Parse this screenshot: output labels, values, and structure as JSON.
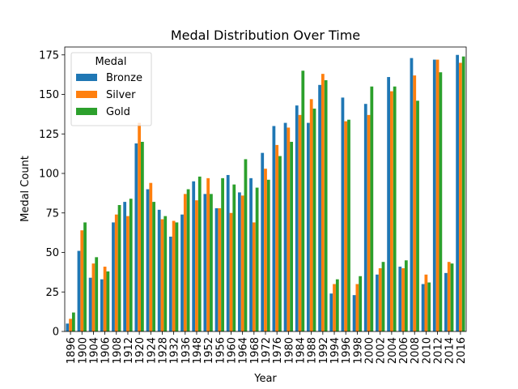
{
  "chart_data": {
    "type": "bar",
    "title": "Medal Distribution Over Time",
    "xlabel": "Year",
    "ylabel": "Medal Count",
    "ylim": [
      0,
      180
    ],
    "yticks": [
      0,
      25,
      50,
      75,
      100,
      125,
      150,
      175
    ],
    "grid": false,
    "legend": {
      "title": "Medal",
      "position": "top-left"
    },
    "categories": [
      "1896",
      "1900",
      "1904",
      "1906",
      "1908",
      "1912",
      "1920",
      "1924",
      "1928",
      "1932",
      "1936",
      "1948",
      "1952",
      "1956",
      "1960",
      "1964",
      "1968",
      "1972",
      "1976",
      "1980",
      "1984",
      "1988",
      "1992",
      "1994",
      "1996",
      "1998",
      "2000",
      "2002",
      "2004",
      "2006",
      "2008",
      "2010",
      "2012",
      "2014",
      "2016"
    ],
    "series": [
      {
        "name": "Bronze",
        "color": "#1f77b4",
        "values": [
          5,
          51,
          34,
          33,
          69,
          82,
          119,
          90,
          77,
          60,
          74,
          95,
          87,
          78,
          99,
          88,
          97,
          113,
          130,
          132,
          143,
          132,
          156,
          24,
          148,
          23,
          144,
          36,
          161,
          41,
          173,
          30,
          172,
          37,
          175
        ]
      },
      {
        "name": "Silver",
        "color": "#ff7f0e",
        "values": [
          8,
          64,
          43,
          41,
          74,
          73,
          132,
          94,
          71,
          70,
          87,
          83,
          97,
          78,
          75,
          86,
          69,
          103,
          118,
          129,
          137,
          147,
          163,
          30,
          133,
          30,
          137,
          40,
          152,
          40,
          162,
          36,
          172,
          44,
          170
        ]
      },
      {
        "name": "Gold",
        "color": "#2ca02c",
        "values": [
          12,
          69,
          47,
          38,
          80,
          84,
          120,
          82,
          73,
          69,
          90,
          98,
          87,
          97,
          93,
          109,
          91,
          96,
          111,
          120,
          165,
          141,
          159,
          33,
          134,
          35,
          155,
          44,
          155,
          45,
          146,
          31,
          164,
          43,
          174
        ]
      }
    ]
  }
}
